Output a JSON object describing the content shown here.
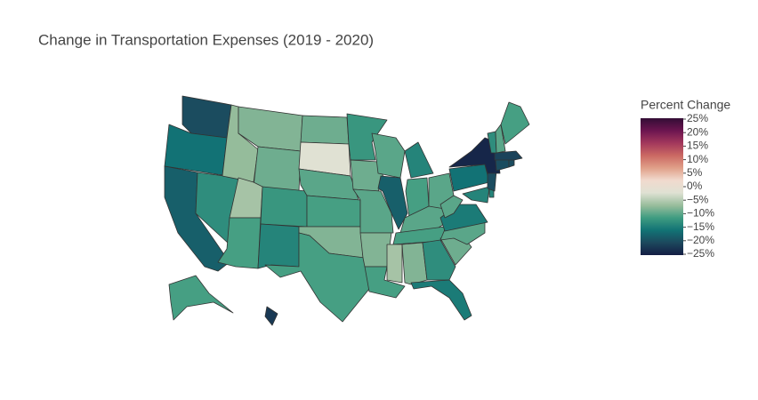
{
  "chart_data": {
    "type": "choropleth",
    "title": "Change in Transportation Expenses (2019 - 2020)",
    "colorbar_title": "Percent Change",
    "values": [
      -20,
      -16,
      -18,
      -13,
      -7,
      -8,
      -9,
      -6,
      -11,
      -12,
      -14,
      -9,
      -2,
      -10,
      -11,
      -8,
      -11,
      -12,
      -9,
      -10,
      -8,
      -11,
      -10,
      -18,
      -14,
      -11,
      -10,
      -10,
      -11,
      -6,
      -8,
      -13,
      -15,
      -9,
      -10,
      -15,
      -10,
      -16,
      -14,
      -14,
      -20,
      -24,
      -20,
      -20,
      -21,
      -13,
      -10,
      -11,
      -11,
      -22
    ],
    "colorscale": [
      "#141d43",
      "#1c485d",
      "#127375",
      "#3f9c81",
      "#99bd9c",
      "#dfe1d3",
      "#f1dace",
      "#e0a089",
      "#cb6963",
      "#a3385c",
      "#6c1550",
      "#330d35"
    ],
    "zlim": [
      -25,
      25
    ],
    "ticks": [
      {
        "value": 25,
        "label": "25%"
      },
      {
        "value": 20,
        "label": "20%"
      },
      {
        "value": 15,
        "label": "15%"
      },
      {
        "value": 10,
        "label": "10%"
      },
      {
        "value": 5,
        "label": "5%"
      },
      {
        "value": 0,
        "label": "0%"
      },
      {
        "value": -5,
        "label": "−5%"
      },
      {
        "value": -10,
        "label": "−10%"
      },
      {
        "value": -15,
        "label": "−15%"
      },
      {
        "value": -20,
        "label": "−20%"
      },
      {
        "value": -25,
        "label": "−25%"
      }
    ]
  }
}
